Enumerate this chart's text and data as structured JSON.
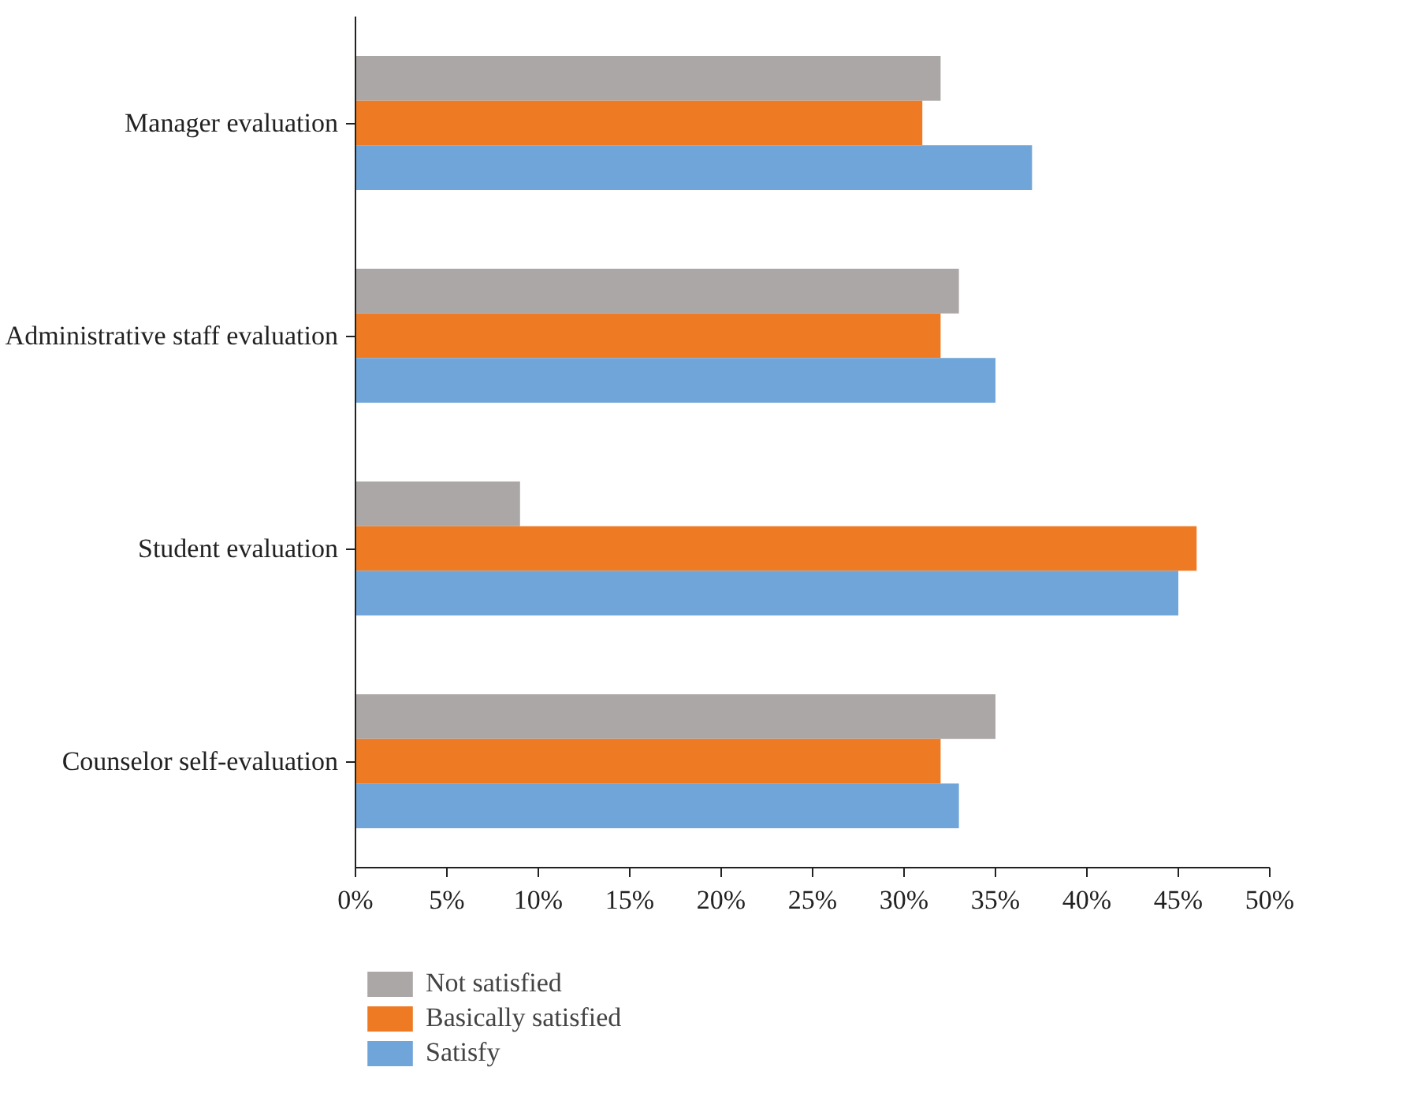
{
  "chart_data": {
    "type": "bar",
    "orientation": "horizontal",
    "categories": [
      "Manager evaluation",
      "Administrative staff evaluation",
      "Student evaluation",
      "Counselor self-evaluation"
    ],
    "series": [
      {
        "name": "Not satisfied",
        "color": "#aba7a6",
        "values": [
          32,
          33,
          9,
          35
        ]
      },
      {
        "name": "Basically satisfied",
        "color": "#ee7b24",
        "values": [
          31,
          32,
          46,
          32
        ]
      },
      {
        "name": "Satisfy",
        "color": "#6fa5d8",
        "values": [
          37,
          35,
          45,
          33
        ]
      }
    ],
    "xlim": [
      0,
      50
    ],
    "xticks": [
      {
        "value": 0,
        "label": "0%"
      },
      {
        "value": 5,
        "label": "5%"
      },
      {
        "value": 10,
        "label": "10%"
      },
      {
        "value": 15,
        "label": "15%"
      },
      {
        "value": 20,
        "label": "20%"
      },
      {
        "value": 25,
        "label": "25%"
      },
      {
        "value": 30,
        "label": "30%"
      },
      {
        "value": 35,
        "label": "35%"
      },
      {
        "value": 40,
        "label": "40%"
      },
      {
        "value": 45,
        "label": "45%"
      },
      {
        "value": 50,
        "label": "50%"
      }
    ],
    "legend": "bottom",
    "grid": false
  }
}
